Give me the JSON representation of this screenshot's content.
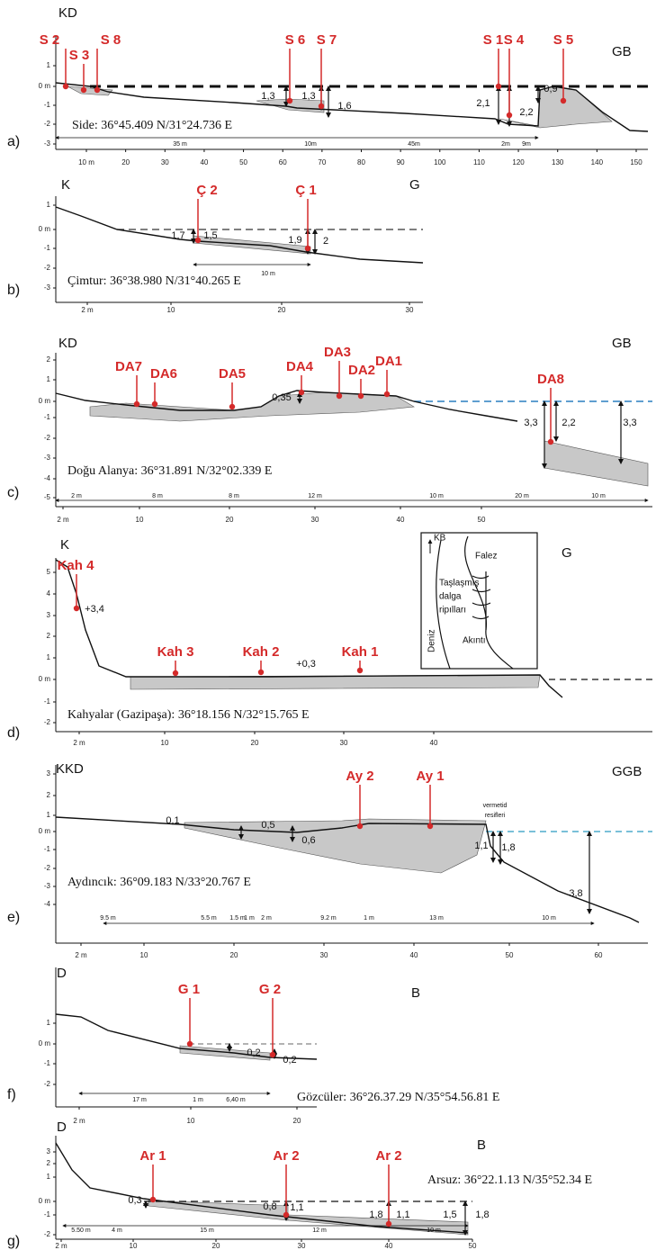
{
  "panels": [
    {
      "label": "a)",
      "left": "KD",
      "right": "GB",
      "caption": "Side: 36°45.409 N/31°24.736 E",
      "stations": [
        "S 2",
        "S 3",
        "S 8",
        "S 6",
        "S 7",
        "S 1",
        "S 4",
        "S 5"
      ],
      "measurements": [
        "1,3",
        "1,3",
        "1,6",
        "2,1",
        "2,2",
        "0,9"
      ],
      "distances": [
        "35 m",
        "10m",
        "45m",
        "2m",
        "9m"
      ],
      "y_axis": [
        "1",
        "0 m",
        "-1",
        "-2",
        "-3"
      ],
      "x_axis": [
        "10 m",
        "20",
        "30",
        "40",
        "50",
        "60",
        "70",
        "80",
        "90",
        "100",
        "110",
        "120",
        "130",
        "140",
        "150"
      ]
    },
    {
      "label": "b)",
      "left": "K",
      "right": "G",
      "caption": "Çimtur: 36°38.980 N/31°40.265 E",
      "stations": [
        "Ç 2",
        "Ç 1"
      ],
      "measurements": [
        "1,7",
        "1,5",
        "1,9",
        "2"
      ],
      "distances": [
        "10 m"
      ],
      "y_axis": [
        "1",
        "0 m",
        "-1",
        "-2",
        "-3"
      ],
      "x_axis": [
        "2 m",
        "10",
        "20",
        "30"
      ]
    },
    {
      "label": "c)",
      "left": "KD",
      "right": "GB",
      "caption": "Doğu Alanya: 36°31.891 N/32°02.339 E",
      "stations": [
        "DA7",
        "DA6",
        "DA5",
        "DA4",
        "DA3",
        "DA2",
        "DA1",
        "DA8"
      ],
      "measurements": [
        "0,35",
        "3,3",
        "2,2",
        "3,3"
      ],
      "distances": [
        "2 m",
        "8 m",
        "8 m",
        "12 m",
        "10 m",
        "20 m",
        "10 m"
      ],
      "y_axis": [
        "2",
        "1",
        "0 m",
        "-1",
        "-2",
        "-3",
        "-4",
        "-5"
      ],
      "x_axis": [
        "2 m",
        "10",
        "20",
        "30",
        "40",
        "50"
      ]
    },
    {
      "label": "d)",
      "left": "K",
      "right": "G",
      "caption": "Kahyalar (Gazipaşa): 36°18.156 N/32°15.765 E",
      "stations": [
        "Kah 4",
        "Kah 3",
        "Kah 2",
        "Kah 1"
      ],
      "measurements": [
        "+3,4",
        "+0,3"
      ],
      "distances": [],
      "y_axis": [
        "5",
        "4",
        "3",
        "2",
        "1",
        "0 m",
        "-1",
        "-2"
      ],
      "x_axis": [
        "2 m",
        "10",
        "20",
        "30",
        "40"
      ],
      "inset": [
        "KB",
        "Falez",
        "Taşlaşmış",
        "dalga",
        "ripılları",
        "Akıntı",
        "Deniz"
      ]
    },
    {
      "label": "e)",
      "left": "KKD",
      "right": "GGB",
      "caption": "Aydıncık: 36°09.183 N/33°20.767 E",
      "stations": [
        "Ay 2",
        "Ay 1"
      ],
      "measurements": [
        "0,1",
        "0,5",
        "0,6",
        "1,1",
        "1,8",
        "3,8"
      ],
      "notes": [
        "vermetid",
        "resifleri"
      ],
      "distances": [
        "9.5 m",
        "5.5 m",
        "1.5 m",
        "1 m",
        "2 m",
        "9.2 m",
        "1 m",
        "13 m",
        "10 m"
      ],
      "y_axis": [
        "3",
        "2",
        "1",
        "0 m",
        "-1",
        "-2",
        "-3",
        "-4"
      ],
      "x_axis": [
        "2 m",
        "10",
        "20",
        "30",
        "40",
        "50",
        "60"
      ]
    },
    {
      "label": "f)",
      "left": "D",
      "right": "B",
      "caption": "Gözcüler: 36°26.37.29 N/35°54.56.81 E",
      "stations": [
        "G 1",
        "G 2"
      ],
      "measurements": [
        "0,2",
        "0,2"
      ],
      "distances": [
        "17 m",
        "1 m",
        "6,40 m"
      ],
      "y_axis": [
        "1",
        "0 m",
        "-1",
        "-2"
      ],
      "x_axis": [
        "2 m",
        "10",
        "20"
      ]
    },
    {
      "label": "g)",
      "left": "D",
      "right": "B",
      "caption": "Arsuz: 36°22.1.13 N/35°52.34 E",
      "stations": [
        "Ar 1",
        "Ar 2",
        "Ar 2"
      ],
      "measurements": [
        "0,3",
        "0,8",
        "1,1",
        "1,8",
        "1,1",
        "1,5",
        "1,8"
      ],
      "distances": [
        "5.50 m",
        "4 m",
        "15 m",
        "12 m",
        "10 m"
      ],
      "y_axis": [
        "3",
        "2",
        "1",
        "0 m",
        "-1",
        "-2"
      ],
      "x_axis": [
        "2 m",
        "10",
        "20",
        "30",
        "40",
        "50"
      ]
    }
  ]
}
